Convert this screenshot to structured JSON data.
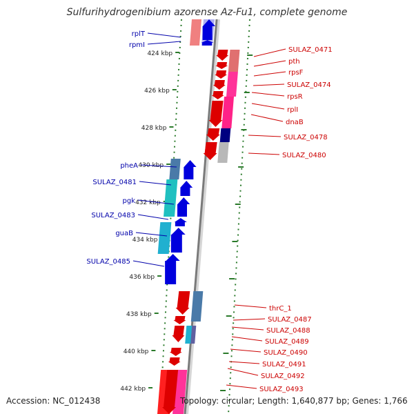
{
  "header": {
    "title": "Sulfurihydrogenibium azorense Az-Fu1, complete genome"
  },
  "footer": {
    "accession": "Accession: NC_012438",
    "topology": "Topology: circular; Length: 1,640,877 bp; Genes: 1,766"
  },
  "colors": {
    "forward": "#0000dd",
    "reverse": "#dd0000",
    "forward_label": "#0000aa",
    "reverse_label": "#cc0000",
    "backbone": "#888888",
    "tick": "#2a7a2a"
  },
  "axis_ticks": [
    {
      "label": "424 kbp",
      "kbp": 424
    },
    {
      "label": "426 kbp",
      "kbp": 426
    },
    {
      "label": "428 kbp",
      "kbp": 428
    },
    {
      "label": "430 kbp",
      "kbp": 430
    },
    {
      "label": "432 kbp",
      "kbp": 432
    },
    {
      "label": "434 kbp",
      "kbp": 434
    },
    {
      "label": "436 kbp",
      "kbp": 436
    },
    {
      "label": "438 kbp",
      "kbp": 438
    },
    {
      "label": "440 kbp",
      "kbp": 440
    },
    {
      "label": "442 kbp",
      "kbp": 442
    }
  ],
  "forward_genes": [
    {
      "label": "rplT"
    },
    {
      "label": "rpmI"
    },
    {
      "label": "pheA"
    },
    {
      "label": "SULAZ_0481"
    },
    {
      "label": "pgk"
    },
    {
      "label": "SULAZ_0483"
    },
    {
      "label": "guaB"
    },
    {
      "label": "SULAZ_0485"
    }
  ],
  "reverse_genes": [
    {
      "label": "SULAZ_0471"
    },
    {
      "label": "pth"
    },
    {
      "label": "rpsF"
    },
    {
      "label": "SULAZ_0474"
    },
    {
      "label": "rpsR"
    },
    {
      "label": "rplI"
    },
    {
      "label": "dnaB"
    },
    {
      "label": "SULAZ_0478"
    },
    {
      "label": "SULAZ_0480"
    },
    {
      "label": "thrC_1"
    },
    {
      "label": "SULAZ_0487"
    },
    {
      "label": "SULAZ_0488"
    },
    {
      "label": "SULAZ_0489"
    },
    {
      "label": "SULAZ_0490"
    },
    {
      "label": "SULAZ_0491"
    },
    {
      "label": "SULAZ_0492"
    },
    {
      "label": "SULAZ_0493"
    }
  ]
}
